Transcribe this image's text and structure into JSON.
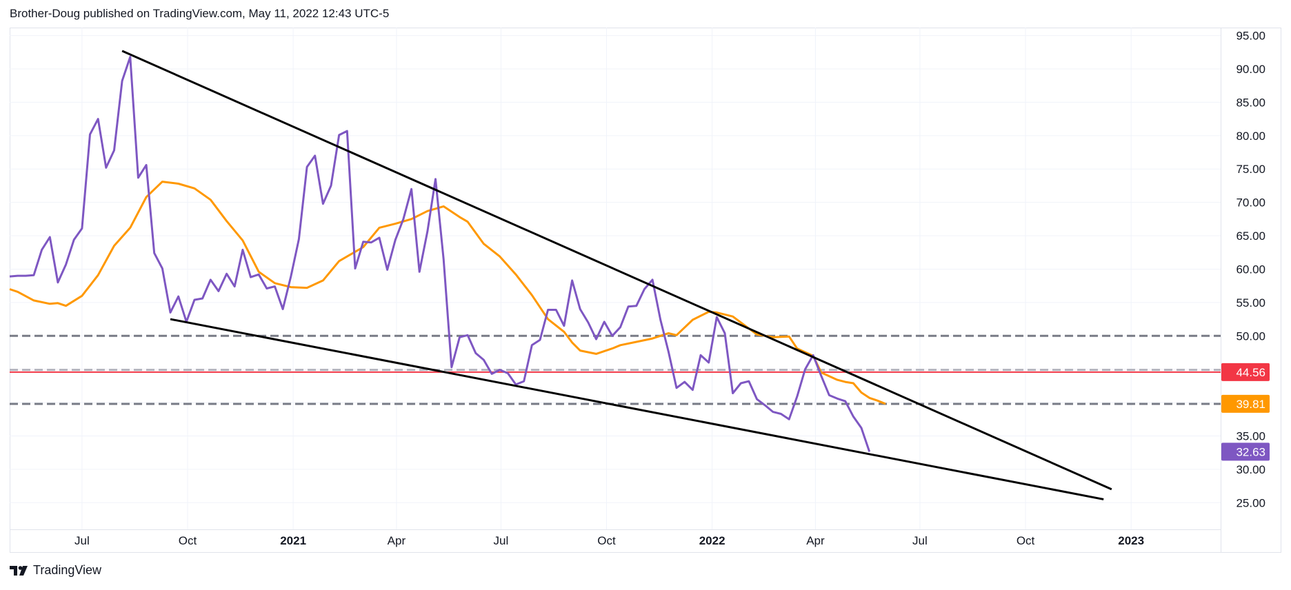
{
  "header": {
    "published_text": "Brother-Doug published on TradingView.com, May 11, 2022 12:43 UTC-5"
  },
  "footer": {
    "brand_label": "TradingView"
  },
  "chart_data": {
    "type": "line",
    "title": "",
    "xlabel": "",
    "ylabel": "",
    "x_axis": {
      "range": [
        "2020-04-29",
        "2023-03-20"
      ],
      "ticks": [
        {
          "date": "2020-07-01",
          "label": "Jul",
          "bold": false
        },
        {
          "date": "2020-10-01",
          "label": "Oct",
          "bold": false
        },
        {
          "date": "2021-01-01",
          "label": "2021",
          "bold": true
        },
        {
          "date": "2021-04-01",
          "label": "Apr",
          "bold": false
        },
        {
          "date": "2021-07-01",
          "label": "Jul",
          "bold": false
        },
        {
          "date": "2021-10-01",
          "label": "Oct",
          "bold": false
        },
        {
          "date": "2022-01-01",
          "label": "2022",
          "bold": true
        },
        {
          "date": "2022-04-01",
          "label": "Apr",
          "bold": false
        },
        {
          "date": "2022-07-01",
          "label": "Jul",
          "bold": false
        },
        {
          "date": "2022-10-01",
          "label": "Oct",
          "bold": false
        },
        {
          "date": "2023-01-01",
          "label": "2023",
          "bold": true
        }
      ]
    },
    "y_axis": {
      "range": [
        21.0,
        96.2
      ],
      "ticks": [
        "95.00",
        "90.00",
        "85.00",
        "80.00",
        "75.00",
        "70.00",
        "65.00",
        "60.00",
        "55.00",
        "50.00",
        "45.00",
        "40.00",
        "35.00",
        "30.00",
        "25.00"
      ],
      "tick_values": [
        95,
        90,
        85,
        80,
        75,
        70,
        65,
        60,
        55,
        50,
        45,
        40,
        35,
        30,
        25
      ]
    },
    "grid": true,
    "series": [
      {
        "role": "price",
        "color": "#7e57c2",
        "last_value_label": "32.63",
        "last_value": 32.63,
        "points": [
          [
            "2020-04-29",
            58.9
          ],
          [
            "2020-05-06",
            59.0
          ],
          [
            "2020-05-13",
            59.0
          ],
          [
            "2020-05-20",
            59.1
          ],
          [
            "2020-05-27",
            62.9
          ],
          [
            "2020-06-03",
            64.8
          ],
          [
            "2020-06-10",
            58.0
          ],
          [
            "2020-06-17",
            60.7
          ],
          [
            "2020-06-24",
            64.4
          ],
          [
            "2020-07-01",
            66.1
          ],
          [
            "2020-07-08",
            80.2
          ],
          [
            "2020-07-15",
            82.5
          ],
          [
            "2020-07-22",
            75.2
          ],
          [
            "2020-07-29",
            77.8
          ],
          [
            "2020-08-05",
            88.2
          ],
          [
            "2020-08-12",
            91.8
          ],
          [
            "2020-08-19",
            73.7
          ],
          [
            "2020-08-26",
            75.6
          ],
          [
            "2020-09-02",
            62.4
          ],
          [
            "2020-09-09",
            60.1
          ],
          [
            "2020-09-16",
            53.5
          ],
          [
            "2020-09-23",
            55.9
          ],
          [
            "2020-09-30",
            52.1
          ],
          [
            "2020-10-07",
            55.4
          ],
          [
            "2020-10-14",
            55.6
          ],
          [
            "2020-10-21",
            58.4
          ],
          [
            "2020-10-28",
            56.7
          ],
          [
            "2020-11-04",
            59.3
          ],
          [
            "2020-11-11",
            57.4
          ],
          [
            "2020-11-18",
            62.9
          ],
          [
            "2020-11-25",
            58.8
          ],
          [
            "2020-12-02",
            59.2
          ],
          [
            "2020-12-09",
            57.1
          ],
          [
            "2020-12-16",
            57.4
          ],
          [
            "2020-12-23",
            54.0
          ],
          [
            "2020-12-30",
            58.9
          ],
          [
            "2021-01-06",
            64.5
          ],
          [
            "2021-01-13",
            75.3
          ],
          [
            "2021-01-20",
            77.0
          ],
          [
            "2021-01-27",
            69.8
          ],
          [
            "2021-02-03",
            72.5
          ],
          [
            "2021-02-10",
            80.1
          ],
          [
            "2021-02-17",
            80.7
          ],
          [
            "2021-02-24",
            60.1
          ],
          [
            "2021-03-03",
            64.1
          ],
          [
            "2021-03-10",
            64.0
          ],
          [
            "2021-03-17",
            64.7
          ],
          [
            "2021-03-24",
            59.9
          ],
          [
            "2021-03-31",
            64.4
          ],
          [
            "2021-04-07",
            67.5
          ],
          [
            "2021-04-14",
            72.0
          ],
          [
            "2021-04-21",
            59.6
          ],
          [
            "2021-04-28",
            65.7
          ],
          [
            "2021-05-05",
            73.5
          ],
          [
            "2021-05-12",
            61.5
          ],
          [
            "2021-05-19",
            45.3
          ],
          [
            "2021-05-26",
            49.8
          ],
          [
            "2021-06-02",
            50.1
          ],
          [
            "2021-06-09",
            47.4
          ],
          [
            "2021-06-16",
            46.4
          ],
          [
            "2021-06-23",
            44.3
          ],
          [
            "2021-06-30",
            44.9
          ],
          [
            "2021-07-07",
            44.4
          ],
          [
            "2021-07-14",
            42.7
          ],
          [
            "2021-07-21",
            43.2
          ],
          [
            "2021-07-28",
            48.6
          ],
          [
            "2021-08-04",
            49.4
          ],
          [
            "2021-08-11",
            53.9
          ],
          [
            "2021-08-18",
            53.9
          ],
          [
            "2021-08-25",
            51.5
          ],
          [
            "2021-09-01",
            58.3
          ],
          [
            "2021-09-08",
            54.0
          ],
          [
            "2021-09-15",
            52.0
          ],
          [
            "2021-09-22",
            49.5
          ],
          [
            "2021-09-29",
            52.1
          ],
          [
            "2021-10-06",
            50.0
          ],
          [
            "2021-10-13",
            51.3
          ],
          [
            "2021-10-20",
            54.4
          ],
          [
            "2021-10-27",
            54.5
          ],
          [
            "2021-11-03",
            57.0
          ],
          [
            "2021-11-10",
            58.4
          ],
          [
            "2021-11-17",
            52.4
          ],
          [
            "2021-11-24",
            47.6
          ],
          [
            "2021-12-01",
            42.2
          ],
          [
            "2021-12-08",
            43.1
          ],
          [
            "2021-12-15",
            41.9
          ],
          [
            "2021-12-22",
            47.1
          ],
          [
            "2021-12-29",
            46.0
          ],
          [
            "2022-01-05",
            52.8
          ],
          [
            "2022-01-12",
            50.4
          ],
          [
            "2022-01-19",
            41.4
          ],
          [
            "2022-01-26",
            42.9
          ],
          [
            "2022-02-02",
            43.2
          ],
          [
            "2022-02-09",
            40.5
          ],
          [
            "2022-02-16",
            39.6
          ],
          [
            "2022-02-23",
            38.6
          ],
          [
            "2022-03-02",
            38.3
          ],
          [
            "2022-03-09",
            37.5
          ],
          [
            "2022-03-16",
            40.9
          ],
          [
            "2022-03-23",
            45.0
          ],
          [
            "2022-03-30",
            47.1
          ],
          [
            "2022-04-06",
            44.0
          ],
          [
            "2022-04-13",
            41.1
          ],
          [
            "2022-04-20",
            40.6
          ],
          [
            "2022-04-27",
            40.2
          ],
          [
            "2022-05-04",
            37.9
          ],
          [
            "2022-05-11",
            36.2
          ],
          [
            "2022-05-18",
            32.63
          ]
        ]
      },
      {
        "role": "moving-average",
        "color": "#ff9800",
        "last_value_label": "39.81",
        "last_value": 39.81,
        "points": [
          [
            "2020-04-29",
            57.0
          ],
          [
            "2020-05-06",
            56.6
          ],
          [
            "2020-05-20",
            55.3
          ],
          [
            "2020-06-03",
            54.8
          ],
          [
            "2020-06-10",
            54.9
          ],
          [
            "2020-06-17",
            54.5
          ],
          [
            "2020-07-01",
            56.0
          ],
          [
            "2020-07-15",
            59.1
          ],
          [
            "2020-07-29",
            63.5
          ],
          [
            "2020-08-12",
            66.2
          ],
          [
            "2020-08-26",
            70.8
          ],
          [
            "2020-09-09",
            73.1
          ],
          [
            "2020-09-23",
            72.8
          ],
          [
            "2020-10-07",
            72.1
          ],
          [
            "2020-10-21",
            70.4
          ],
          [
            "2020-11-04",
            67.2
          ],
          [
            "2020-11-18",
            64.3
          ],
          [
            "2020-12-02",
            59.6
          ],
          [
            "2020-12-16",
            57.9
          ],
          [
            "2020-12-30",
            57.3
          ],
          [
            "2021-01-13",
            57.2
          ],
          [
            "2021-01-27",
            58.3
          ],
          [
            "2021-02-10",
            61.2
          ],
          [
            "2021-02-24",
            62.6
          ],
          [
            "2021-03-03",
            63.3
          ],
          [
            "2021-03-17",
            66.2
          ],
          [
            "2021-03-31",
            66.8
          ],
          [
            "2021-04-14",
            67.5
          ],
          [
            "2021-04-28",
            68.7
          ],
          [
            "2021-05-12",
            69.4
          ],
          [
            "2021-05-26",
            67.8
          ],
          [
            "2021-06-02",
            67.1
          ],
          [
            "2021-06-16",
            63.8
          ],
          [
            "2021-06-30",
            61.9
          ],
          [
            "2021-07-14",
            59.2
          ],
          [
            "2021-07-28",
            56.1
          ],
          [
            "2021-08-11",
            52.5
          ],
          [
            "2021-08-25",
            50.6
          ],
          [
            "2021-09-01",
            49.0
          ],
          [
            "2021-09-08",
            47.8
          ],
          [
            "2021-09-22",
            47.3
          ],
          [
            "2021-10-06",
            48.1
          ],
          [
            "2021-10-13",
            48.6
          ],
          [
            "2021-10-27",
            49.1
          ],
          [
            "2021-11-10",
            49.6
          ],
          [
            "2021-11-24",
            50.4
          ],
          [
            "2021-12-01",
            50.1
          ],
          [
            "2021-12-15",
            52.4
          ],
          [
            "2021-12-29",
            53.6
          ],
          [
            "2022-01-05",
            53.5
          ],
          [
            "2022-01-19",
            52.9
          ],
          [
            "2022-02-02",
            51.1
          ],
          [
            "2022-02-09",
            50.2
          ],
          [
            "2022-02-23",
            49.8
          ],
          [
            "2022-03-09",
            49.9
          ],
          [
            "2022-03-16",
            48.1
          ],
          [
            "2022-03-30",
            47.0
          ],
          [
            "2022-04-06",
            44.5
          ],
          [
            "2022-04-20",
            43.4
          ],
          [
            "2022-04-27",
            43.1
          ],
          [
            "2022-05-04",
            42.9
          ],
          [
            "2022-05-11",
            41.5
          ],
          [
            "2022-05-18",
            40.7
          ],
          [
            "2022-05-25",
            40.3
          ],
          [
            "2022-06-01",
            39.81
          ]
        ]
      }
    ],
    "trendlines": [
      {
        "role": "upper-trendline",
        "color": "#000000",
        "from": [
          "2020-08-05",
          92.7
        ],
        "to": [
          "2022-12-15",
          27.0
        ]
      },
      {
        "role": "lower-trendline",
        "color": "#000000",
        "from": [
          "2020-09-16",
          52.5
        ],
        "to": [
          "2022-12-08",
          25.5
        ]
      }
    ],
    "horizontal_lines": [
      {
        "role": "dashed-level-upper",
        "value": 50.0,
        "style": "dashed",
        "color": "#787b86"
      },
      {
        "role": "dashed-level-lower",
        "value": 39.8,
        "style": "dashed",
        "color": "#787b86"
      },
      {
        "role": "dashed-level-light",
        "value": 44.9,
        "style": "dashed",
        "color": "#b2b5be"
      },
      {
        "role": "solid-level",
        "value": 44.56,
        "style": "solid",
        "color": "#f23645"
      }
    ],
    "price_labels": [
      {
        "text": "44.56",
        "value": 44.56,
        "color": "#f23645"
      },
      {
        "text": "39.81",
        "value": 39.81,
        "color": "#ff9800"
      },
      {
        "text": "32.63",
        "value": 32.63,
        "color": "#7e57c2"
      }
    ]
  }
}
